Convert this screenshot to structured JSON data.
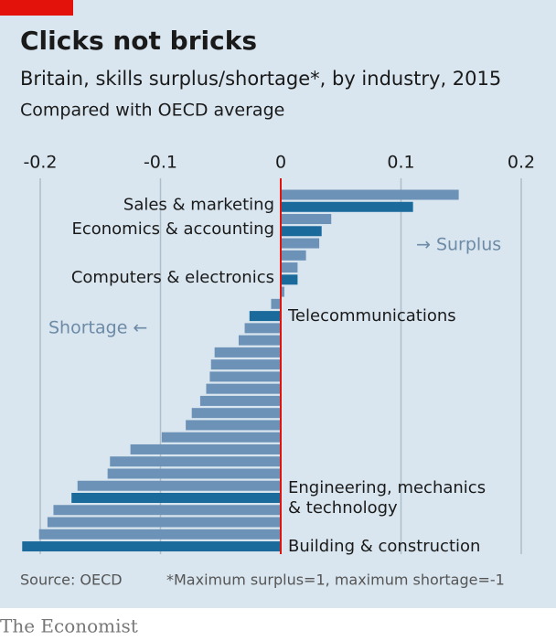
{
  "chart_data": {
    "type": "barh",
    "title": "Clicks not bricks",
    "subtitle": "Britain, skills surplus/shortage*, by industry, 2015",
    "axis_label": "Compared with OECD average",
    "annotations": {
      "surplus": "→ Surplus",
      "shortage": "Shortage ←"
    },
    "source": "Source: OECD",
    "footnote": "*Maximum surplus=1, maximum shortage=-1",
    "brand": "The Economist",
    "categories": [
      null,
      "Sales & marketing",
      null,
      "Economics & accounting",
      null,
      null,
      null,
      "Computers & electronics",
      null,
      null,
      "Telecommunications",
      null,
      null,
      null,
      null,
      null,
      null,
      null,
      null,
      null,
      null,
      null,
      null,
      null,
      null,
      "Engineering, mechanics & technology",
      null,
      null,
      null,
      "Building & construction"
    ],
    "values": [
      0.148,
      0.11,
      0.042,
      0.034,
      0.032,
      0.021,
      0.014,
      0.014,
      0.003,
      -0.008,
      -0.026,
      -0.03,
      -0.035,
      -0.055,
      -0.058,
      -0.059,
      -0.062,
      -0.067,
      -0.074,
      -0.079,
      -0.099,
      -0.125,
      -0.142,
      -0.144,
      -0.169,
      -0.174,
      -0.189,
      -0.194,
      -0.201,
      -0.215
    ],
    "color": "#6d92b8",
    "highlight_color": "#1b6a9c",
    "zero_line_color": "#e3120b",
    "xlim": [
      -0.22,
      0.22
    ],
    "xticks": [
      -0.2,
      -0.1,
      0,
      0.1,
      0.2
    ],
    "grid": true
  }
}
